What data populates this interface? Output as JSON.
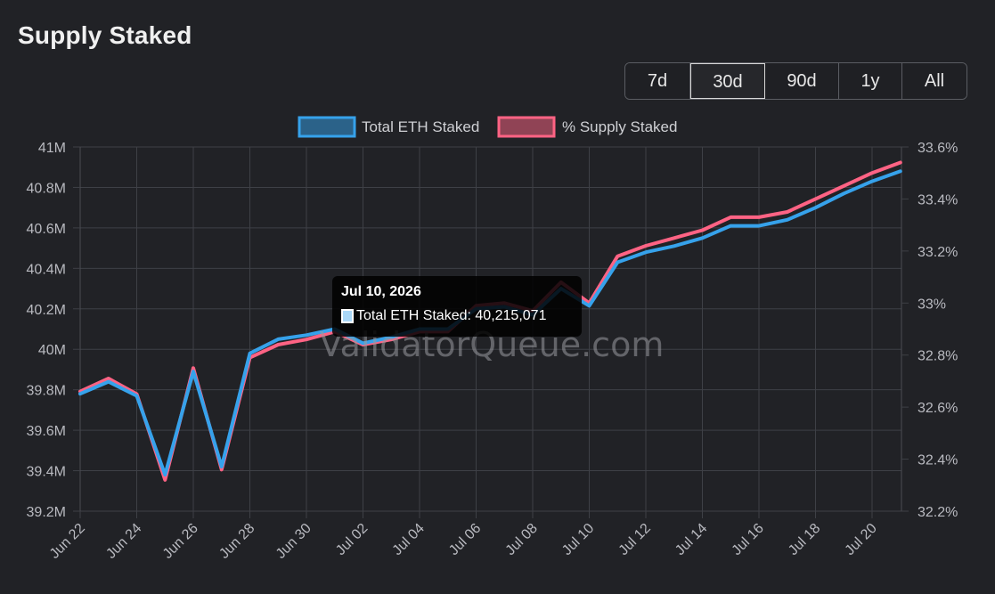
{
  "title": "Supply Staked",
  "ranges": [
    {
      "label": "7d",
      "active": false
    },
    {
      "label": "30d",
      "active": true
    },
    {
      "label": "90d",
      "active": false
    },
    {
      "label": "1y",
      "active": false
    },
    {
      "label": "All",
      "active": false
    }
  ],
  "watermark": "ValidatorQueue.com",
  "tooltip": {
    "date": "Jul 10, 2026",
    "label": "Total ETH Staked: 40,215,071",
    "swatch_color": "#a9d7f7"
  },
  "chart_data": {
    "type": "line",
    "categories": [
      "Jun 22",
      "Jun 23",
      "Jun 24",
      "Jun 25",
      "Jun 26",
      "Jun 27",
      "Jun 28",
      "Jun 29",
      "Jun 30",
      "Jul 01",
      "Jul 02",
      "Jul 03",
      "Jul 04",
      "Jul 05",
      "Jul 06",
      "Jul 07",
      "Jul 08",
      "Jul 09",
      "Jul 10",
      "Jul 11",
      "Jul 12",
      "Jul 13",
      "Jul 14",
      "Jul 15",
      "Jul 16",
      "Jul 17",
      "Jul 18",
      "Jul 19",
      "Jul 20",
      "Jul 21"
    ],
    "x_tick_labels": [
      "Jun 22",
      "Jun 24",
      "Jun 26",
      "Jun 28",
      "Jun 30",
      "Jul 02",
      "Jul 04",
      "Jul 06",
      "Jul 08",
      "Jul 10",
      "Jul 12",
      "Jul 14",
      "Jul 16",
      "Jul 18",
      "Jul 20"
    ],
    "y_left": {
      "min": 39.2,
      "max": 41.0,
      "ticks": [
        "39.2M",
        "39.4M",
        "39.6M",
        "39.8M",
        "40M",
        "40.2M",
        "40.4M",
        "40.6M",
        "40.8M",
        "41M"
      ]
    },
    "y_right": {
      "min": 32.2,
      "max": 33.6,
      "ticks": [
        "32.2%",
        "32.4%",
        "32.6%",
        "32.8%",
        "33%",
        "33.2%",
        "33.4%",
        "33.6%"
      ]
    },
    "grid": true,
    "legend_position": "top",
    "series": [
      {
        "name": "Total ETH Staked",
        "axis": "left",
        "color": "#36a2eb",
        "fill": "rgba(54,162,235,0.5)",
        "values": [
          39.78,
          39.84,
          39.77,
          39.38,
          39.89,
          39.42,
          39.98,
          40.05,
          40.07,
          40.1,
          40.03,
          40.06,
          40.1,
          40.1,
          40.2,
          40.21,
          40.17,
          40.3,
          40.215,
          40.43,
          40.48,
          40.51,
          40.55,
          40.61,
          40.61,
          40.64,
          40.7,
          40.77,
          40.83,
          40.88
        ]
      },
      {
        "name": "% Supply Staked",
        "axis": "right",
        "color": "#ff6384",
        "fill": "rgba(255,99,132,0.5)",
        "values": [
          32.66,
          32.71,
          32.65,
          32.32,
          32.75,
          32.36,
          32.79,
          32.84,
          32.86,
          32.89,
          32.84,
          32.86,
          32.89,
          32.89,
          32.99,
          33.0,
          32.97,
          33.08,
          33.0,
          33.18,
          33.22,
          33.25,
          33.28,
          33.33,
          33.33,
          33.35,
          33.4,
          33.45,
          33.5,
          33.54
        ]
      }
    ]
  }
}
